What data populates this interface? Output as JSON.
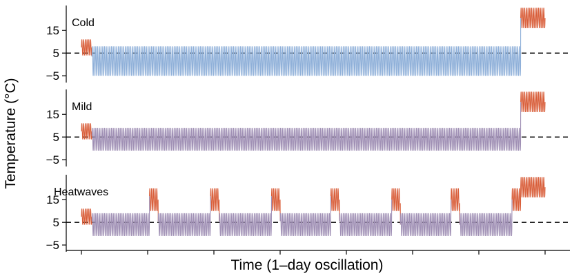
{
  "chart_data": {
    "type": "line",
    "xlabel": "Time (1–day oscillation)",
    "ylabel": "Temperature (°C)",
    "y_ticks": [
      "15",
      "5",
      "−5"
    ],
    "y_tick_values": [
      15,
      5,
      -5
    ],
    "reference_line_y": 5,
    "x_range": [
      -6,
      272
    ],
    "x_ticks": [
      0,
      38,
      76,
      114,
      152,
      190,
      228,
      266
    ],
    "y_range": [
      -8,
      26
    ],
    "colors": {
      "warm": "#d95f3b",
      "cold": "#8fb0d9",
      "mixed": "#a090b5",
      "reference": "#000000"
    },
    "panels": [
      {
        "label": "Cold",
        "segments": [
          {
            "start_day": 0,
            "end_day": 6,
            "mean": 7.5,
            "amplitude": 3.5,
            "color": "warm"
          },
          {
            "start_day": 6,
            "end_day": 252,
            "mean": 1.5,
            "amplitude": 6.5,
            "color": "cold"
          },
          {
            "start_day": 252,
            "end_day": 266,
            "mean": 20.5,
            "amplitude": 4.5,
            "color": "warm"
          }
        ]
      },
      {
        "label": "Mild",
        "segments": [
          {
            "start_day": 0,
            "end_day": 6,
            "mean": 7.5,
            "amplitude": 3.5,
            "color": "warm"
          },
          {
            "start_day": 6,
            "end_day": 252,
            "mean": 4,
            "amplitude": 5,
            "color": "mixed"
          },
          {
            "start_day": 252,
            "end_day": 266,
            "mean": 20.5,
            "amplitude": 4.5,
            "color": "warm"
          }
        ]
      },
      {
        "label": "Heatwaves",
        "segments": [
          {
            "start_day": 0,
            "end_day": 6,
            "mean": 7.5,
            "amplitude": 3.5,
            "color": "warm"
          },
          {
            "start_day": 6,
            "end_day": 252,
            "mean": 4,
            "amplitude": 5,
            "color": "mixed"
          },
          {
            "start_day": 252,
            "end_day": 266,
            "mean": 20.5,
            "amplitude": 4.5,
            "color": "warm"
          }
        ],
        "heatwaves": [
          {
            "start_day": 39,
            "end_day": 44,
            "mean": 15,
            "amplitude": 5
          },
          {
            "start_day": 74,
            "end_day": 79,
            "mean": 15,
            "amplitude": 5
          },
          {
            "start_day": 109,
            "end_day": 114,
            "mean": 15,
            "amplitude": 5
          },
          {
            "start_day": 143,
            "end_day": 148,
            "mean": 15,
            "amplitude": 5
          },
          {
            "start_day": 178,
            "end_day": 183,
            "mean": 15,
            "amplitude": 5
          },
          {
            "start_day": 212,
            "end_day": 217,
            "mean": 15,
            "amplitude": 5
          },
          {
            "start_day": 247,
            "end_day": 252,
            "mean": 15,
            "amplitude": 5
          }
        ]
      }
    ]
  }
}
